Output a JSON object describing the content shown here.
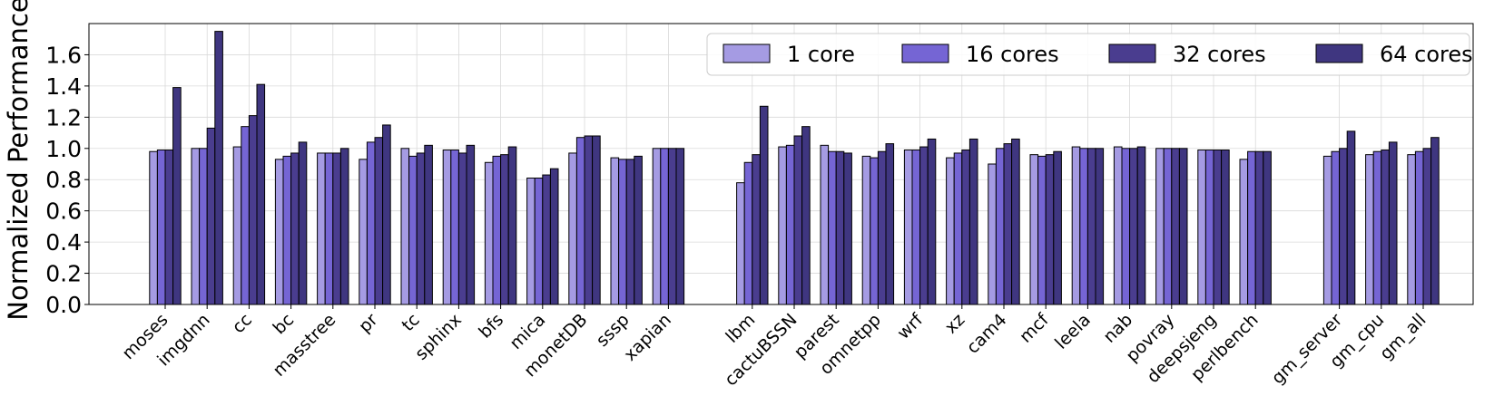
{
  "chart_data": {
    "type": "bar",
    "ylabel": "Normalized Performance",
    "ylim": [
      0,
      1.8
    ],
    "yticks": [
      "0.0",
      "0.2",
      "0.4",
      "0.6",
      "0.8",
      "1.0",
      "1.2",
      "1.4",
      "1.6"
    ],
    "grid": true,
    "legend_position": "top-right",
    "series": [
      {
        "name": "1 core",
        "color": "#a59be3"
      },
      {
        "name": "16 cores",
        "color": "#7565d4"
      },
      {
        "name": "32 cores",
        "color": "#4a3d8f"
      },
      {
        "name": "64 cores",
        "color": "#3f3680"
      }
    ],
    "categories": [
      "moses",
      "imgdnn",
      "cc",
      "bc",
      "masstree",
      "pr",
      "tc",
      "sphinx",
      "bfs",
      "mica",
      "monetDB",
      "sssp",
      "xapian",
      "lbm",
      "cactuBSSN",
      "parest",
      "omnetpp",
      "wrf",
      "xz",
      "cam4",
      "mcf",
      "leela",
      "nab",
      "povray",
      "deepsjeng",
      "perlbench",
      "gm_server",
      "gm_cpu",
      "gm_all"
    ],
    "groups": [
      {
        "start": 0,
        "count": 13
      },
      {
        "start": 13,
        "count": 13
      },
      {
        "start": 26,
        "count": 3
      }
    ],
    "values": [
      [
        0.98,
        0.99,
        0.99,
        1.39
      ],
      [
        1.0,
        1.0,
        1.13,
        1.75
      ],
      [
        1.01,
        1.14,
        1.21,
        1.41
      ],
      [
        0.93,
        0.95,
        0.97,
        1.04
      ],
      [
        0.97,
        0.97,
        0.97,
        1.0
      ],
      [
        0.93,
        1.04,
        1.07,
        1.15
      ],
      [
        1.0,
        0.95,
        0.97,
        1.02
      ],
      [
        0.99,
        0.99,
        0.97,
        1.02
      ],
      [
        0.91,
        0.95,
        0.96,
        1.01
      ],
      [
        0.81,
        0.81,
        0.83,
        0.87
      ],
      [
        0.97,
        1.07,
        1.08,
        1.08
      ],
      [
        0.94,
        0.93,
        0.93,
        0.95
      ],
      [
        1.0,
        1.0,
        1.0,
        1.0
      ],
      [
        0.78,
        0.91,
        0.96,
        1.27
      ],
      [
        1.01,
        1.02,
        1.08,
        1.14
      ],
      [
        1.02,
        0.98,
        0.98,
        0.97
      ],
      [
        0.95,
        0.94,
        0.98,
        1.03
      ],
      [
        0.99,
        0.99,
        1.01,
        1.06
      ],
      [
        0.94,
        0.97,
        0.99,
        1.06
      ],
      [
        0.9,
        1.0,
        1.03,
        1.06
      ],
      [
        0.96,
        0.95,
        0.96,
        0.98
      ],
      [
        1.01,
        1.0,
        1.0,
        1.0
      ],
      [
        1.01,
        1.0,
        1.0,
        1.01
      ],
      [
        1.0,
        1.0,
        1.0,
        1.0
      ],
      [
        0.99,
        0.99,
        0.99,
        0.99
      ],
      [
        0.93,
        0.98,
        0.98,
        0.98
      ],
      [
        0.95,
        0.98,
        1.0,
        1.11
      ],
      [
        0.96,
        0.98,
        0.99,
        1.04
      ],
      [
        0.96,
        0.98,
        1.0,
        1.07
      ]
    ]
  }
}
